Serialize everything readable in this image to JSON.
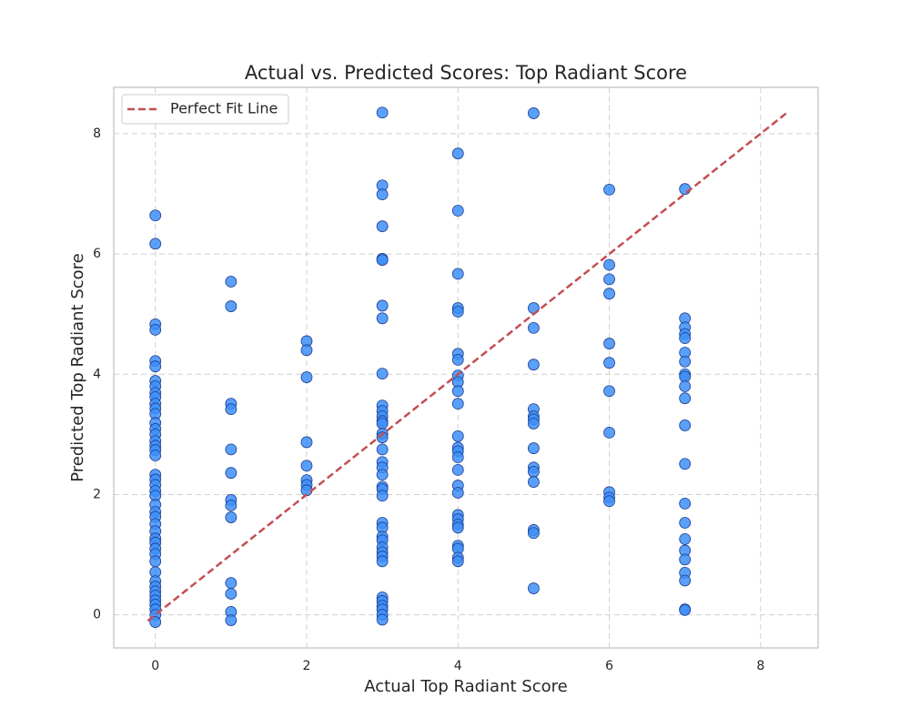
{
  "chart_data": {
    "type": "scatter",
    "title": "Actual vs. Predicted Scores: Top Radiant Score",
    "xlabel": "Actual Top Radiant Score",
    "ylabel": "Predicted Top Radiant Score",
    "color": "#3d8ef8",
    "edge_color": "#1c3c8c",
    "grid": true,
    "legend_loc": "upper left",
    "xlim": [
      -0.55,
      8.76
    ],
    "ylim": [
      -0.55,
      8.77
    ],
    "xticks": [
      0,
      2,
      4,
      6,
      8
    ],
    "yticks": [
      0,
      2,
      4,
      6,
      8
    ],
    "x": [
      0,
      0,
      0,
      0,
      0,
      0,
      0,
      0,
      0,
      0,
      0,
      0,
      0,
      0,
      0,
      0,
      0,
      0,
      0,
      0,
      0,
      0,
      0,
      0,
      0,
      0,
      0,
      0,
      0,
      0,
      0,
      0,
      0,
      0,
      0,
      0,
      0,
      0,
      0,
      0,
      0,
      0,
      0,
      0,
      0,
      1,
      1,
      1,
      1,
      1,
      1,
      1,
      1,
      1,
      1,
      1,
      1,
      1,
      2,
      2,
      2,
      2,
      2,
      2,
      2,
      2,
      3,
      3,
      3,
      3,
      3,
      3,
      3,
      3,
      3,
      3,
      3,
      3,
      3,
      3,
      3,
      3,
      3,
      3,
      3,
      3,
      3,
      3,
      3,
      3,
      3,
      3,
      3,
      3,
      3,
      3,
      3,
      3,
      3,
      3,
      3,
      3,
      3,
      4,
      4,
      4,
      4,
      4,
      4,
      4,
      4,
      4,
      4,
      4,
      4,
      4,
      4,
      4,
      4,
      4,
      4,
      4,
      4,
      4,
      4,
      4,
      4,
      4,
      4,
      5,
      5,
      5,
      5,
      5,
      5,
      5,
      5,
      5,
      5,
      5,
      5,
      5,
      5,
      5,
      6,
      6,
      6,
      6,
      6,
      6,
      6,
      6,
      6,
      6,
      6,
      7,
      7,
      7,
      7,
      7,
      7,
      7,
      7,
      7,
      7,
      7,
      7,
      7,
      7,
      7,
      7,
      7,
      7,
      7,
      7,
      7,
      7
    ],
    "y": [
      6.64,
      6.17,
      4.83,
      4.74,
      4.22,
      4.13,
      3.89,
      3.8,
      3.69,
      3.62,
      3.51,
      3.43,
      3.34,
      3.19,
      3.09,
      3.0,
      2.89,
      2.81,
      2.74,
      2.65,
      2.33,
      2.25,
      2.16,
      2.06,
      1.98,
      1.83,
      1.71,
      1.63,
      1.51,
      1.39,
      1.27,
      1.2,
      1.1,
      1.01,
      0.89,
      0.71,
      0.56,
      0.47,
      0.39,
      0.32,
      0.24,
      0.17,
      0.09,
      0.0,
      -0.12,
      5.54,
      5.13,
      3.51,
      3.42,
      2.75,
      2.36,
      1.91,
      1.82,
      1.62,
      0.53,
      0.35,
      0.05,
      -0.09,
      4.55,
      4.4,
      3.95,
      2.87,
      2.48,
      2.24,
      2.16,
      2.07,
      8.35,
      7.14,
      6.99,
      6.46,
      5.92,
      5.9,
      5.14,
      4.93,
      4.01,
      3.48,
      3.39,
      3.3,
      3.22,
      3.18,
      3.01,
      2.95,
      2.75,
      2.54,
      2.45,
      2.33,
      2.13,
      2.09,
      1.98,
      1.53,
      1.45,
      1.3,
      1.24,
      1.12,
      1.04,
      0.97,
      0.89,
      0.29,
      0.23,
      0.15,
      0.09,
      0.0,
      -0.08,
      7.67,
      6.72,
      5.67,
      5.1,
      5.04,
      4.34,
      4.24,
      3.98,
      3.87,
      3.72,
      3.51,
      2.97,
      2.78,
      2.72,
      2.62,
      2.41,
      2.15,
      2.03,
      1.66,
      1.59,
      1.5,
      1.45,
      1.15,
      1.1,
      0.95,
      0.89,
      8.34,
      5.1,
      4.77,
      4.16,
      3.42,
      3.3,
      3.25,
      3.18,
      2.77,
      2.45,
      2.38,
      2.21,
      1.41,
      1.36,
      0.44,
      7.07,
      5.82,
      5.58,
      5.34,
      4.51,
      4.19,
      3.72,
      3.03,
      2.04,
      1.95,
      1.89,
      7.08,
      4.93,
      4.78,
      4.67,
      4.6,
      4.36,
      4.21,
      4.0,
      3.96,
      3.8,
      3.6,
      3.15,
      2.51,
      1.85,
      1.53,
      1.26,
      1.07,
      0.92,
      0.7,
      0.57,
      0.09,
      0.08
    ],
    "fit_line": {
      "name": "Perfect Fit Line",
      "color": "#c44e52",
      "x": [
        -0.1,
        8.35
      ],
      "y": [
        -0.1,
        8.35
      ]
    }
  }
}
